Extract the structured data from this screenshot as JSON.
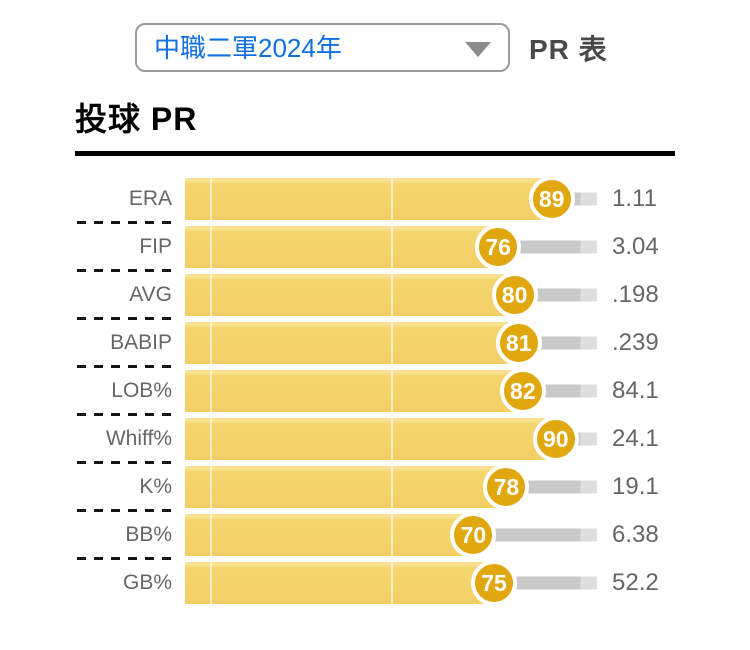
{
  "header": {
    "dropdown": {
      "value": "中職二軍2024年",
      "icon": "caret-down-icon"
    },
    "page_label": "PR 表"
  },
  "section": {
    "title": "投球 PR"
  },
  "chart_data": {
    "type": "bar",
    "orientation": "horizontal",
    "title": "投球 PR",
    "xlabel": "",
    "ylabel": "",
    "x_range": [
      0,
      100
    ],
    "value_semantics": "PR = percentile rank (badge); right column = raw stat value",
    "gridlines_pct": [
      6,
      50
    ],
    "legend": null,
    "categories": [
      "ERA",
      "FIP",
      "AVG",
      "BABIP",
      "LOB%",
      "Whiff%",
      "K%",
      "BB%",
      "GB%"
    ],
    "rows": [
      {
        "label": "ERA",
        "pr": 89,
        "value": "1.11"
      },
      {
        "label": "FIP",
        "pr": 76,
        "value": "3.04"
      },
      {
        "label": "AVG",
        "pr": 80,
        "value": ".198"
      },
      {
        "label": "BABIP",
        "pr": 81,
        "value": ".239"
      },
      {
        "label": "LOB%",
        "pr": 82,
        "value": "84.1"
      },
      {
        "label": "Whiff%",
        "pr": 90,
        "value": "24.1"
      },
      {
        "label": "K%",
        "pr": 78,
        "value": "19.1"
      },
      {
        "label": "BB%",
        "pr": 70,
        "value": "6.38"
      },
      {
        "label": "GB%",
        "pr": 75,
        "value": "52.2"
      }
    ]
  },
  "colors": {
    "bar_yellow": "#f3d065",
    "bar_yellow_highlight": "#f9e08e",
    "badge_gold": "#e1a70e",
    "remainder_gray": "#c9c9c9",
    "remainder_gray_light": "#dedede",
    "dropdown_text_blue": "#1170e0",
    "text_gray": "#666666",
    "separator_black": "#151515",
    "title_black": "#000000"
  }
}
